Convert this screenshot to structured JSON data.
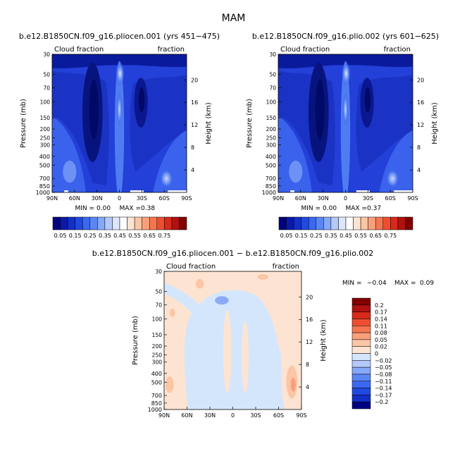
{
  "title": "MAM",
  "panels": [
    {
      "title": "b.e12.B1850CN.f09_g16.pliocen.001 (yrs 451−475)",
      "left_label": "Cloud fraction",
      "right_label": "fraction",
      "ylabel": "Pressure (mb)",
      "ylabel_right": "Height (km)",
      "min_label": "MIN =",
      "min_value": "0.00",
      "max_label": "MAX =",
      "max_value": "0.38"
    },
    {
      "title": "b.e12.B1850CN.f09_g16.plio.002 (yrs 601−625)",
      "left_label": "Cloud fraction",
      "right_label": "fraction",
      "ylabel": "Pressure (mb)",
      "ylabel_right": "Height (km)",
      "min_label": "MIN =",
      "min_value": "0.00",
      "max_label": "MAX =",
      "max_value": "0.37"
    },
    {
      "title": "b.e12.B1850CN.f09_g16.pliocen.001 − b.e12.B1850CN.f09_g16.plio.002",
      "left_label": "Cloud fraction",
      "right_label": "fraction",
      "ylabel": "Pressure (mb)",
      "ylabel_right": "Height (km)",
      "min_label": "MIN =",
      "min_value": "−0.04",
      "max_label": "MAX =",
      "max_value": "0.09"
    }
  ],
  "axes": {
    "x_ticks": [
      "90N",
      "60N",
      "30N",
      "0",
      "30S",
      "60S",
      "90S"
    ],
    "x_values": [
      90,
      60,
      30,
      0,
      -30,
      -60,
      -90
    ],
    "p_ticks": [
      "30",
      "50",
      "70",
      "100",
      "150",
      "200",
      "250",
      "300",
      "400",
      "500",
      "700",
      "850",
      "1000"
    ],
    "p_values": [
      30,
      50,
      70,
      100,
      150,
      200,
      250,
      300,
      400,
      500,
      700,
      850,
      1000
    ],
    "h_ticks": [
      "20",
      "16",
      "12",
      "8",
      "4"
    ],
    "h_values": [
      20,
      16,
      12,
      8,
      4
    ]
  },
  "colorbar1": {
    "labels": [
      "0.05",
      "0.15",
      "0.25",
      "0.35",
      "0.45",
      "0.55",
      "0.65",
      "0.75"
    ],
    "colors": [
      "#000080",
      "#0a1aa8",
      "#1230c8",
      "#1f4ae0",
      "#3a68f0",
      "#5a86f5",
      "#86a8f8",
      "#b4c8fa",
      "#dce6fc",
      "#ffffff",
      "#fde4d2",
      "#fbc6a6",
      "#f9a07a",
      "#f67650",
      "#ee4e30",
      "#d72a1a",
      "#b01210",
      "#800000"
    ]
  },
  "colorbar2": {
    "labels": [
      "0.2",
      "0.17",
      "0.14",
      "0.11",
      "0.08",
      "0.05",
      "0.02",
      "0",
      "−0.02",
      "−0.05",
      "−0.08",
      "−0.11",
      "−0.14",
      "−0.17",
      "−0.2"
    ],
    "colors": [
      "#800000",
      "#b01210",
      "#d72a1a",
      "#ee4e30",
      "#f67650",
      "#f9a07a",
      "#fbc6a6",
      "#fde4d2",
      "#d4e6fc",
      "#b4c8fa",
      "#86a8f8",
      "#5a86f5",
      "#3a68f0",
      "#1f4ae0",
      "#1230c8",
      "#000080"
    ]
  },
  "chart_data": [
    {
      "type": "heatmap",
      "title": "b.e12.B1850CN.f09_g16.pliocen.001 (yrs 451−475)",
      "x": [
        90,
        60,
        30,
        0,
        -30,
        -60,
        -90
      ],
      "y": [
        1000,
        850,
        700,
        500,
        300,
        200,
        100
      ],
      "values": [
        [
          0.22,
          0.33,
          0.2,
          0.25,
          0.22,
          0.35,
          0.3
        ],
        [
          0.18,
          0.27,
          0.1,
          0.26,
          0.16,
          0.3,
          0.25
        ],
        [
          0.12,
          0.14,
          0.05,
          0.27,
          0.1,
          0.18,
          0.2
        ],
        [
          0.12,
          0.1,
          0.03,
          0.25,
          0.05,
          0.12,
          0.15
        ],
        [
          0.12,
          0.1,
          0.05,
          0.26,
          0.1,
          0.15,
          0.15
        ],
        [
          0.08,
          0.12,
          0.18,
          0.32,
          0.16,
          0.12,
          0.1
        ],
        [
          0.02,
          0.05,
          0.1,
          0.28,
          0.08,
          0.05,
          0.02
        ]
      ],
      "zmin": 0.0,
      "zmax": 0.38
    },
    {
      "type": "heatmap",
      "title": "b.e12.B1850CN.f09_g16.plio.002 (yrs 601−625)",
      "x": [
        90,
        60,
        30,
        0,
        -30,
        -60,
        -90
      ],
      "y": [
        1000,
        850,
        700,
        500,
        300,
        200,
        100
      ],
      "values": [
        [
          0.2,
          0.3,
          0.2,
          0.25,
          0.22,
          0.35,
          0.3
        ],
        [
          0.16,
          0.25,
          0.1,
          0.26,
          0.16,
          0.3,
          0.25
        ],
        [
          0.11,
          0.13,
          0.05,
          0.27,
          0.1,
          0.18,
          0.2
        ],
        [
          0.11,
          0.1,
          0.03,
          0.25,
          0.05,
          0.12,
          0.15
        ],
        [
          0.11,
          0.1,
          0.05,
          0.26,
          0.1,
          0.15,
          0.15
        ],
        [
          0.08,
          0.12,
          0.18,
          0.31,
          0.16,
          0.12,
          0.1
        ],
        [
          0.02,
          0.05,
          0.1,
          0.27,
          0.08,
          0.05,
          0.02
        ]
      ],
      "zmin": 0.0,
      "zmax": 0.37
    },
    {
      "type": "heatmap",
      "title": "b.e12.B1850CN.f09_g16.pliocen.001 − b.e12.B1850CN.f09_g16.plio.002",
      "x": [
        90,
        60,
        30,
        0,
        -30,
        -60,
        -90
      ],
      "y": [
        1000,
        850,
        700,
        500,
        300,
        200,
        100
      ],
      "values": [
        [
          0.03,
          0.01,
          0.0,
          0.0,
          0.0,
          0.01,
          0.04
        ],
        [
          0.02,
          0.0,
          -0.01,
          0.0,
          -0.01,
          0.0,
          0.03
        ],
        [
          0.01,
          0.0,
          -0.01,
          -0.01,
          -0.01,
          0.0,
          0.01
        ],
        [
          0.02,
          0.0,
          -0.01,
          0.0,
          -0.01,
          0.0,
          0.0
        ],
        [
          0.01,
          0.0,
          -0.01,
          0.02,
          -0.01,
          0.0,
          0.0
        ],
        [
          0.0,
          0.0,
          0.0,
          -0.02,
          0.0,
          0.01,
          0.0
        ],
        [
          0.0,
          0.0,
          0.0,
          0.0,
          0.0,
          0.0,
          0.0
        ]
      ],
      "zmin": -0.04,
      "zmax": 0.09
    }
  ]
}
